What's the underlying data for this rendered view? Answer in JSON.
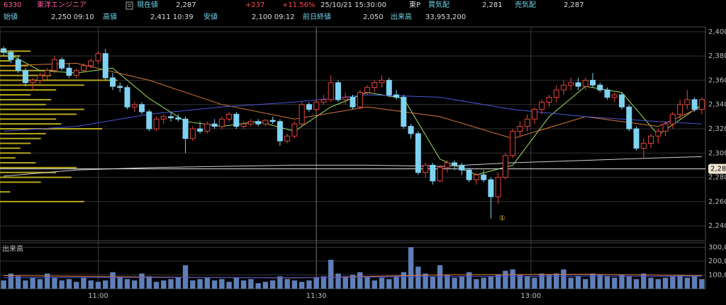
{
  "header": {
    "code": "6330",
    "name": "東洋エンジニア",
    "price_label": "現在値",
    "price": "2,287",
    "change": "+237",
    "change_pct": "+11.56%",
    "datetime": "25/10/21  15:30:00",
    "market": "東P",
    "bid_label": "買気配",
    "bid": "2,281",
    "ask_label": "売気配",
    "ask": "2,287",
    "open_label": "始値",
    "open": "2,250 09:10",
    "high_label": "高値",
    "high": "2,411 10:39",
    "low_label": "安値",
    "low": "2,100 09:12",
    "prev_close_label": "前日終値",
    "prev_close": "2,050",
    "volume_label": "出来高",
    "volume": "33,953,200"
  },
  "chart_data": [
    {
      "type": "candlestick",
      "xlim": [
        -0.5,
        96.5
      ],
      "xticks": [
        {
          "value": 13,
          "label": "11:00"
        },
        {
          "value": 43,
          "label": "11:30"
        },
        {
          "value": 72.5,
          "label": "13:00"
        }
      ],
      "ylim": [
        2229,
        2404
      ],
      "yticks": [
        {
          "value": 2240,
          "label": "2,240"
        },
        {
          "value": 2260,
          "label": "2,260"
        },
        {
          "value": 2280,
          "label": "2,280"
        },
        {
          "value": 2300,
          "label": "2,300"
        },
        {
          "value": 2320,
          "label": "2,320"
        },
        {
          "value": 2340,
          "label": "2,340"
        },
        {
          "value": 2360,
          "label": "2,360"
        },
        {
          "value": 2380,
          "label": "2,380"
        },
        {
          "value": 2400,
          "label": "2,400"
        }
      ],
      "grid": true,
      "up_color": "#e8453c",
      "down_color": "#7fd3f2",
      "open": [
        2386,
        2383,
        2377,
        2368,
        2358,
        2360,
        2364,
        2368,
        2377,
        2370,
        2364,
        2368,
        2372,
        2376,
        2382,
        2362,
        2355,
        2354,
        2338,
        2340,
        2334,
        2320,
        2328,
        2330,
        2329,
        2328,
        2312,
        2320,
        2318,
        2324,
        2322,
        2328,
        2332,
        2322,
        2324,
        2326,
        2324,
        2327,
        2326,
        2310,
        2314,
        2324,
        2340,
        2336,
        2342,
        2344,
        2358,
        2344,
        2346,
        2338,
        2350,
        2354,
        2358,
        2360,
        2348,
        2346,
        2322,
        2316,
        2284,
        2290,
        2277,
        2288,
        2292,
        2290,
        2286,
        2278,
        2282,
        2278,
        2264,
        2280,
        2298,
        2318,
        2322,
        2328,
        2336,
        2342,
        2346,
        2352,
        2356,
        2358,
        2355,
        2360,
        2356,
        2352,
        2346,
        2348,
        2338,
        2320,
        2304,
        2308,
        2314,
        2318,
        2324,
        2332,
        2340,
        2344,
        2336
      ],
      "high": [
        2388,
        2385,
        2380,
        2370,
        2362,
        2366,
        2370,
        2380,
        2379,
        2374,
        2370,
        2374,
        2378,
        2384,
        2386,
        2366,
        2358,
        2356,
        2342,
        2342,
        2336,
        2330,
        2332,
        2334,
        2332,
        2330,
        2322,
        2326,
        2326,
        2328,
        2330,
        2334,
        2334,
        2326,
        2328,
        2328,
        2328,
        2330,
        2328,
        2316,
        2326,
        2342,
        2342,
        2344,
        2348,
        2364,
        2360,
        2350,
        2348,
        2352,
        2356,
        2360,
        2364,
        2362,
        2352,
        2348,
        2324,
        2318,
        2292,
        2292,
        2290,
        2294,
        2294,
        2292,
        2288,
        2284,
        2286,
        2280,
        2284,
        2300,
        2320,
        2326,
        2332,
        2338,
        2344,
        2348,
        2356,
        2360,
        2362,
        2362,
        2362,
        2366,
        2358,
        2354,
        2350,
        2350,
        2340,
        2322,
        2312,
        2316,
        2320,
        2326,
        2334,
        2344,
        2352,
        2346,
        2346
      ],
      "low": [
        2380,
        2374,
        2366,
        2355,
        2352,
        2357,
        2360,
        2366,
        2368,
        2362,
        2362,
        2366,
        2370,
        2374,
        2360,
        2352,
        2350,
        2336,
        2334,
        2332,
        2318,
        2318,
        2324,
        2326,
        2326,
        2300,
        2310,
        2316,
        2316,
        2320,
        2320,
        2326,
        2320,
        2320,
        2322,
        2322,
        2322,
        2324,
        2306,
        2308,
        2312,
        2322,
        2334,
        2334,
        2340,
        2342,
        2342,
        2340,
        2336,
        2336,
        2348,
        2350,
        2354,
        2346,
        2344,
        2320,
        2312,
        2282,
        2280,
        2274,
        2276,
        2284,
        2286,
        2282,
        2276,
        2274,
        2276,
        2246,
        2258,
        2278,
        2296,
        2314,
        2318,
        2324,
        2332,
        2338,
        2342,
        2348,
        2352,
        2352,
        2352,
        2354,
        2350,
        2344,
        2342,
        2336,
        2318,
        2302,
        2296,
        2304,
        2308,
        2314,
        2320,
        2328,
        2336,
        2334,
        2332
      ],
      "close": [
        2383,
        2377,
        2368,
        2358,
        2360,
        2364,
        2368,
        2377,
        2370,
        2364,
        2368,
        2372,
        2376,
        2382,
        2362,
        2355,
        2354,
        2338,
        2340,
        2334,
        2320,
        2328,
        2330,
        2329,
        2328,
        2312,
        2320,
        2318,
        2324,
        2322,
        2328,
        2332,
        2322,
        2324,
        2326,
        2324,
        2327,
        2326,
        2310,
        2314,
        2324,
        2340,
        2336,
        2342,
        2344,
        2358,
        2344,
        2346,
        2338,
        2350,
        2354,
        2358,
        2360,
        2348,
        2346,
        2322,
        2316,
        2284,
        2290,
        2277,
        2288,
        2292,
        2290,
        2286,
        2278,
        2282,
        2278,
        2264,
        2280,
        2298,
        2318,
        2322,
        2328,
        2336,
        2342,
        2346,
        2352,
        2356,
        2358,
        2355,
        2360,
        2356,
        2352,
        2346,
        2348,
        2338,
        2320,
        2304,
        2308,
        2314,
        2318,
        2324,
        2332,
        2340,
        2344,
        2336,
        2344
      ],
      "lines": [
        {
          "color": "#9be05a",
          "x": [
            0,
            5,
            10,
            15,
            20,
            25,
            30,
            35,
            40,
            45,
            50,
            55,
            60,
            65,
            70,
            75,
            80,
            85,
            90,
            96
          ],
          "values": [
            2384,
            2368,
            2366,
            2370,
            2345,
            2326,
            2322,
            2326,
            2318,
            2338,
            2350,
            2345,
            2295,
            2282,
            2290,
            2330,
            2355,
            2350,
            2315,
            2340
          ]
        },
        {
          "color": "#d9773a",
          "x": [
            0,
            10,
            20,
            30,
            40,
            50,
            60,
            70,
            80,
            90,
            96
          ],
          "values": [
            2372,
            2374,
            2360,
            2340,
            2328,
            2338,
            2330,
            2312,
            2330,
            2322,
            2338
          ]
        },
        {
          "color": "#4a55d8",
          "x": [
            0,
            10,
            20,
            30,
            40,
            50,
            60,
            70,
            80,
            90,
            96
          ],
          "values": [
            2318,
            2322,
            2332,
            2338,
            2342,
            2348,
            2346,
            2336,
            2330,
            2326,
            2324
          ]
        },
        {
          "color": "#cfcfcf",
          "x": [
            0,
            10,
            20,
            30,
            40,
            50,
            60,
            70,
            80,
            90,
            96
          ],
          "values": [
            2281,
            2286,
            2288,
            2289,
            2290,
            2290,
            2289,
            2292,
            2294,
            2296,
            2297
          ]
        }
      ],
      "volume_profile": {
        "color": "#b5a81c",
        "prices": [
          2384,
          2380,
          2376,
          2372,
          2368,
          2364,
          2360,
          2356,
          2352,
          2348,
          2344,
          2340,
          2336,
          2332,
          2328,
          2324,
          2320,
          2316,
          2312,
          2308,
          2304,
          2300,
          2296,
          2292,
          2288,
          2284,
          2280,
          2276,
          2268,
          2260
        ],
        "lengths": [
          60,
          40,
          20,
          55,
          110,
          100,
          230,
          165,
          110,
          60,
          100,
          90,
          165,
          150,
          110,
          120,
          200,
          90,
          80,
          60,
          40,
          60,
          30,
          70,
          150,
          110,
          140,
          80,
          20,
          165
        ]
      },
      "last_price": {
        "value": 2287,
        "label": "2,28"
      },
      "annotation": {
        "x": 67,
        "y": 2244,
        "text": "①"
      }
    },
    {
      "type": "volume",
      "title": "出来高",
      "color": "#5f7fb8",
      "ylim": [
        0,
        323000
      ],
      "yticks": [
        {
          "value": 100000,
          "label": "100,0"
        },
        {
          "value": 200000,
          "label": "200,0"
        },
        {
          "value": 300000,
          "label": "300,0"
        }
      ],
      "values": [
        60000,
        110000,
        90000,
        60000,
        80000,
        70000,
        110000,
        80000,
        60000,
        70000,
        50000,
        80000,
        60000,
        50000,
        60000,
        120000,
        80000,
        70000,
        60000,
        110000,
        90000,
        50000,
        60000,
        70000,
        80000,
        170000,
        60000,
        70000,
        80000,
        60000,
        70000,
        50000,
        80000,
        60000,
        70000,
        40000,
        50000,
        60000,
        90000,
        70000,
        60000,
        50000,
        60000,
        80000,
        90000,
        210000,
        110000,
        90000,
        100000,
        120000,
        90000,
        60000,
        80000,
        70000,
        90000,
        120000,
        300000,
        160000,
        110000,
        90000,
        170000,
        100000,
        80000,
        90000,
        120000,
        70000,
        80000,
        90000,
        100000,
        130000,
        140000,
        100000,
        90000,
        80000,
        110000,
        100000,
        110000,
        140000,
        80000,
        90000,
        70000,
        110000,
        100000,
        90000,
        80000,
        100000,
        90000,
        70000,
        110000,
        80000,
        70000,
        80000,
        90000,
        100000,
        80000,
        90000,
        70000
      ],
      "lines": [
        {
          "color": "#d9773a",
          "x": [
            0,
            20,
            40,
            60,
            80,
            96
          ],
          "values": [
            95000,
            85000,
            78000,
            100000,
            105000,
            95000
          ]
        },
        {
          "color": "#4a55d8",
          "x": [
            0,
            20,
            40,
            60,
            80,
            96
          ],
          "values": [
            80000,
            82000,
            80000,
            88000,
            92000,
            90000
          ]
        }
      ]
    }
  ]
}
